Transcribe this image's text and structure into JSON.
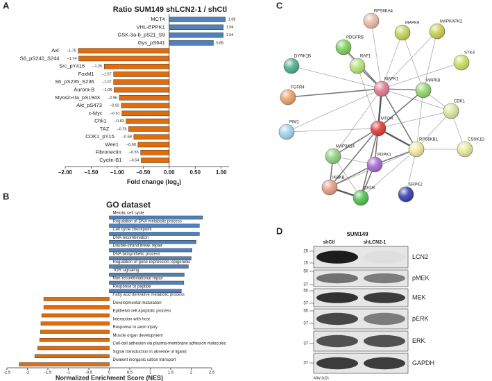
{
  "panel_labels": [
    "A",
    "B",
    "C",
    "D"
  ],
  "chart_data": [
    {
      "type": "bar",
      "orientation": "horizontal",
      "title": "Ratio SUM149 shLCN2-1 / shCtl",
      "categories": [
        "MCT4",
        "VHL-EPPK1",
        "GSK-3a-b_pS21_S9",
        "Gys_pS641",
        "Axl",
        "S6_pS240_S244",
        "Src_pY416",
        "FoxM1",
        "S6_pS235_S236",
        "Aurora-B",
        "Myosin-IIa_pS1943",
        "Akt_pS473",
        "c-Myc",
        "Chk1",
        "TAZ",
        "CDK1_pY15",
        "Wee1",
        "Fibronectin",
        "Cyclin-B1"
      ],
      "values": [
        1.08,
        1.04,
        1.04,
        0.85,
        -1.75,
        -1.74,
        -1.25,
        -1.07,
        -1.07,
        -1.06,
        -0.96,
        -0.92,
        -0.91,
        -0.83,
        -0.78,
        -0.68,
        -0.6,
        -0.55,
        -0.54
      ],
      "value_labels": [
        "1.08",
        "1.04",
        "1.04",
        "0.85",
        "–1.75",
        "–1.74",
        "–1.25",
        "–1.07",
        "–1.07",
        "–1.06",
        "–0.96",
        "–0.92",
        "–0.91",
        "–0.83",
        "–0.78",
        "–0.68",
        "–0.60",
        "–0.55",
        "–0.54"
      ],
      "xlim": [
        -2.0,
        1.15
      ],
      "xticks": [
        {
          "value": -2,
          "label": "–2.00"
        },
        {
          "value": -1.5,
          "label": "–1.50"
        },
        {
          "value": -1,
          "label": "–1.00"
        },
        {
          "value": -0.5,
          "label": "–0.50"
        },
        {
          "value": 0,
          "label": "0.00"
        },
        {
          "value": 0.5,
          "label": "0.50"
        },
        {
          "value": 1,
          "label": "1.00"
        }
      ],
      "x_label_parts": [
        "Fold change (log",
        "2",
        ")"
      ],
      "color_positive": "#4f81bd",
      "color_negative": "#e36c0a"
    },
    {
      "type": "bar",
      "orientation": "horizontal",
      "title": "GO dataset",
      "categories": [
        "Meiotic cell cycle",
        "Regulation of DNA metabolic process",
        "Cell cycle checkpoint",
        "DNA recombination",
        "Double-strand break repair",
        "DNA biosynthetic process",
        "Regulation of gene expression, epigenetic",
        "TOR signaling",
        "Non-recombinational repair",
        "Response to peptide",
        "Fatty acid derivative metabolic process",
        "Developmental maturation",
        "Epithelial cell apoptotic process",
        "Interaction with host",
        "Response to axon injury",
        "Muscle organ development",
        "Cell-cell adhesion via plasma-membrane adhesion molecules",
        "Signal transduction in absence of ligand",
        "Divalent inorganic cation transport"
      ],
      "values": [
        2.28,
        2.2,
        2.2,
        2.12,
        2.02,
        2.0,
        1.93,
        1.83,
        1.82,
        1.76,
        -1.6,
        -1.6,
        -1.65,
        -1.67,
        -1.68,
        -1.7,
        -1.75,
        -1.82,
        -2.2
      ],
      "xlim": [
        -2.5,
        2.5
      ],
      "xticks": [
        -2.5,
        -2,
        -1.5,
        -1,
        -0.5,
        0,
        0.5,
        1,
        1.5,
        2,
        2.5
      ],
      "x_label": "Normalized Enrichment Score (NES)",
      "color_positive": "#4f81bd",
      "color_negative": "#e36c0a"
    }
  ],
  "network": {
    "nodes": [
      "RPS6KA4",
      "MAPK9",
      "MAPKAPK2",
      "PDGFRB",
      "STK3",
      "RAF1",
      "DYRK1B",
      "MAPK1",
      "MAPK8",
      "FGFR4",
      "CDK1",
      "MTOR",
      "PIM1",
      "CSNK1D",
      "RPS6KB1",
      "MAP3K14",
      "PDPK1",
      "IKBKB",
      "CHUK",
      "SRPK2"
    ]
  },
  "blot": {
    "title": "SUM149",
    "lanes": [
      "shCtl",
      "shLCN2-1"
    ],
    "rows": [
      {
        "label": "LCN2",
        "markers": [
          25,
          15
        ]
      },
      {
        "label": "pMEK",
        "markers": [
          50,
          37
        ]
      },
      {
        "label": "MEK",
        "markers": [
          50,
          37
        ]
      },
      {
        "label": "pERK",
        "markers": [
          50,
          37
        ]
      },
      {
        "label": "ERK",
        "markers": [
          37
        ]
      },
      {
        "label": "GAPDH",
        "markers": [
          37
        ]
      }
    ],
    "mw_label": "MW (kD)"
  }
}
